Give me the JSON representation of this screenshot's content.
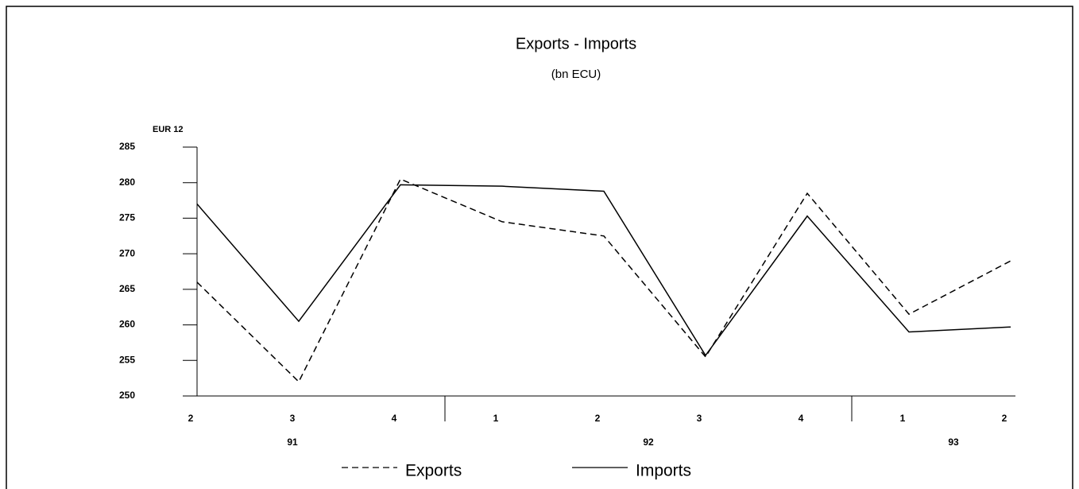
{
  "chart_data": {
    "type": "line",
    "title": "Exports - Imports",
    "subtitle": "(bn ECU)",
    "y_label": "EUR 12",
    "categories": [
      "2",
      "3",
      "4",
      "1",
      "2",
      "3",
      "4",
      "1",
      "2"
    ],
    "groups": [
      {
        "label": "91",
        "start": 0,
        "end": 2
      },
      {
        "label": "92",
        "start": 3,
        "end": 6
      },
      {
        "label": "93",
        "start": 7,
        "end": 8
      }
    ],
    "series": [
      {
        "name": "Exports",
        "color": "#000000",
        "dash": true,
        "values": [
          266,
          252,
          280.5,
          274.5,
          272.5,
          255.5,
          278.5,
          261.5,
          269
        ]
      },
      {
        "name": "Imports",
        "color": "#000000",
        "dash": false,
        "values": [
          277,
          260.5,
          279.7,
          279.5,
          278.8,
          255.7,
          275.3,
          259,
          259.7
        ]
      }
    ],
    "ylim": [
      250,
      285
    ],
    "yticks": [
      250,
      255,
      260,
      265,
      270,
      275,
      280,
      285
    ],
    "grid": false
  }
}
